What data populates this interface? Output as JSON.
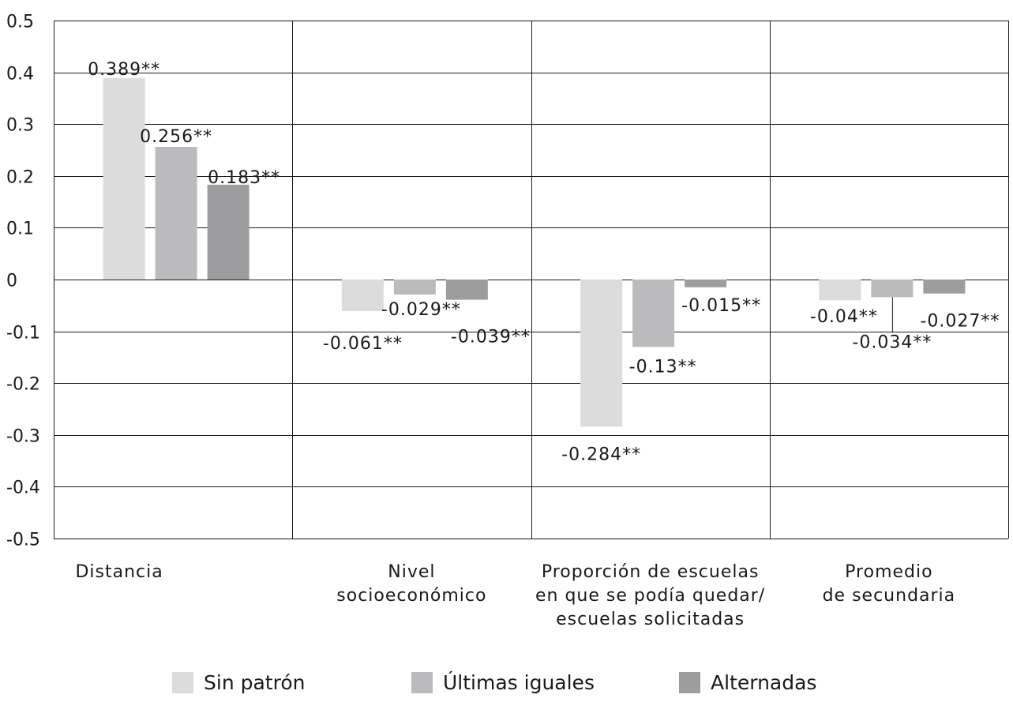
{
  "chart_data": {
    "type": "bar",
    "ylim": [
      -0.5,
      0.5
    ],
    "yticks": [
      "0.5",
      "0.4",
      "0.3",
      "0.2",
      "0.1",
      "0",
      "-0.1",
      "-0.2",
      "-0.3",
      "-0.4",
      "-0.5"
    ],
    "categories": [
      "Distancia",
      "Nivel socioeconómico",
      "Proporción de escuelas en que se podía quedar/ escuelas solicitadas",
      "Promedio de secundaria"
    ],
    "category_lines": [
      [
        "Distancia"
      ],
      [
        "Nivel",
        "socioeconómico"
      ],
      [
        "Proporción de escuelas",
        "en que se podía quedar/",
        "escuelas solicitadas"
      ],
      [
        "Promedio",
        "de secundaria"
      ]
    ],
    "series": [
      {
        "name": "Sin patrón",
        "color": "#dcdcdd",
        "values": [
          0.389,
          -0.061,
          -0.284,
          -0.04
        ],
        "labels": [
          "0.389**",
          "-0.061**",
          "-0.284**",
          "-0.04**"
        ]
      },
      {
        "name": "Últimas iguales",
        "color": "#bbbbbe",
        "values": [
          0.256,
          -0.029,
          -0.13,
          -0.034
        ],
        "labels": [
          "0.256**",
          "-0.029**",
          "-0.13**",
          "-0.034**"
        ]
      },
      {
        "name": "Alternadas",
        "color": "#9d9d9f",
        "values": [
          0.183,
          -0.039,
          -0.015,
          -0.027
        ],
        "labels": [
          "0.183**",
          "-0.039**",
          "-0.015**",
          "-0.027**"
        ]
      }
    ],
    "grid": true,
    "legend_position": "bottom"
  }
}
